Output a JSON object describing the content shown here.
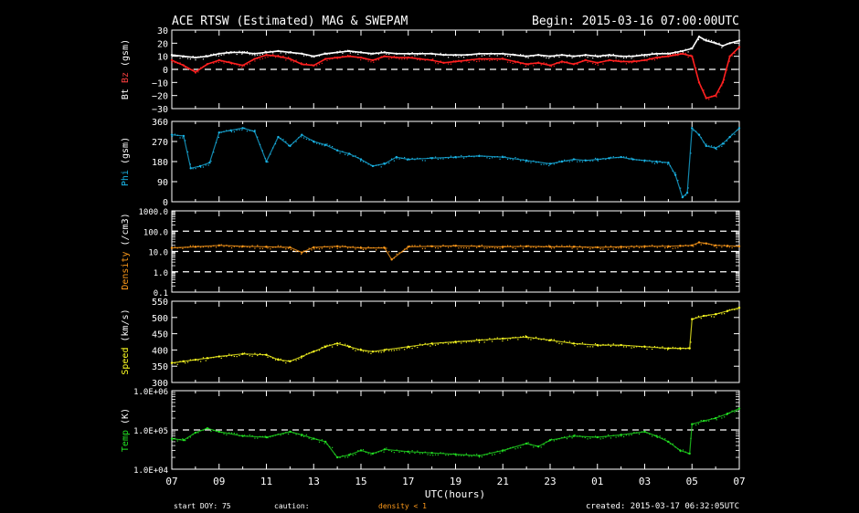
{
  "header": {
    "title": "ACE RTSW (Estimated) MAG & SWEPAM",
    "begin": "Begin: 2015-03-16 07:00:00UTC"
  },
  "footer": {
    "start_doy": "start DOY:  75",
    "caution": "caution:",
    "density_note": "density < 1",
    "created": "created: 2015-03-17 06:32:05UTC"
  },
  "x_axis": {
    "label": "UTC(hours)",
    "ticks": [
      "07",
      "09",
      "11",
      "13",
      "15",
      "17",
      "19",
      "21",
      "23",
      "01",
      "03",
      "05",
      "07"
    ]
  },
  "colors": {
    "bt": "#ffffff",
    "bz": "#ff2020",
    "phi": "#19b4e6",
    "density": "#ff9a1a",
    "speed": "#ffff22",
    "temp": "#22e022",
    "label_dim": "#ff4040"
  },
  "chart_data": [
    {
      "type": "line",
      "panel": "mag",
      "ylabel_parts": [
        "Bt",
        "Bz",
        "(gsm)"
      ],
      "yticks": [
        "30",
        "20",
        "10",
        "0",
        "−10",
        "−20",
        "−30"
      ],
      "ylim": [
        -30,
        30
      ],
      "reference_lines": [
        0
      ],
      "x_hours": [
        0,
        0.5,
        1,
        1.5,
        2,
        2.5,
        3,
        3.5,
        4,
        4.5,
        5,
        5.5,
        6,
        6.5,
        7,
        7.5,
        8,
        8.5,
        9,
        9.5,
        10,
        10.5,
        11,
        11.5,
        12,
        12.5,
        13,
        13.5,
        14,
        14.5,
        15,
        15.5,
        16,
        16.5,
        17,
        17.5,
        18,
        18.5,
        19,
        19.5,
        20,
        20.5,
        21,
        21.3,
        21.6,
        22,
        22.3,
        22.6,
        23,
        23.3,
        23.6,
        24
      ],
      "series": [
        {
          "name": "Bt",
          "values": [
            11,
            10,
            9,
            10,
            12,
            13,
            13,
            12,
            13,
            14,
            13,
            12,
            10,
            12,
            13,
            14,
            13,
            12,
            13,
            12,
            12,
            12,
            12,
            11,
            11,
            11,
            12,
            12,
            12,
            11,
            10,
            11,
            10,
            11,
            10,
            11,
            10,
            11,
            10,
            10,
            11,
            12,
            12,
            13,
            14,
            16,
            25,
            22,
            20,
            18,
            20,
            22
          ]
        },
        {
          "name": "Bz",
          "values": [
            7,
            3,
            -2,
            4,
            7,
            5,
            3,
            8,
            11,
            10,
            8,
            4,
            3,
            8,
            9,
            10,
            9,
            7,
            10,
            9,
            9,
            8,
            7,
            5,
            6,
            7,
            8,
            8,
            8,
            6,
            4,
            5,
            3,
            6,
            4,
            7,
            5,
            7,
            6,
            6,
            7,
            9,
            10,
            11,
            12,
            10,
            -10,
            -22,
            -20,
            -10,
            10,
            17
          ]
        }
      ]
    },
    {
      "type": "scatter",
      "panel": "phi",
      "ylabel_parts": [
        "Phi",
        "(gsm)"
      ],
      "yticks": [
        "360",
        "270",
        "180",
        "90",
        "0"
      ],
      "ylim": [
        0,
        360
      ],
      "x_hours": [
        0,
        0.5,
        0.8,
        1.2,
        1.6,
        2,
        2.5,
        3,
        3.5,
        4,
        4.5,
        5,
        5.5,
        6,
        6.5,
        7,
        7.5,
        8,
        8.5,
        9,
        9.5,
        10,
        11,
        12,
        13,
        14,
        15,
        16,
        16.5,
        17,
        17.5,
        18,
        18.5,
        19,
        19.5,
        20,
        20.5,
        21,
        21.3,
        21.6,
        21.8,
        22,
        22.3,
        22.6,
        23,
        23.3,
        23.6,
        24
      ],
      "series": [
        {
          "name": "Phi",
          "values": [
            300,
            295,
            150,
            160,
            175,
            310,
            320,
            330,
            315,
            180,
            290,
            250,
            300,
            270,
            255,
            230,
            215,
            190,
            160,
            170,
            200,
            190,
            195,
            200,
            205,
            200,
            185,
            170,
            180,
            190,
            185,
            190,
            195,
            200,
            190,
            185,
            180,
            175,
            120,
            20,
            40,
            330,
            300,
            250,
            240,
            260,
            290,
            330
          ]
        }
      ]
    },
    {
      "type": "scatter",
      "panel": "density",
      "ylabel": "Density",
      "ylabel_unit": "(/cm3)",
      "yticks": [
        "1000.0",
        "100.0",
        "10.0",
        "1.0",
        "0.1"
      ],
      "ylim": [
        0.1,
        1000
      ],
      "yscale": "log",
      "reference_lines": [
        100,
        10,
        1
      ],
      "x_hours": [
        0,
        1,
        2,
        3,
        4,
        5,
        5.5,
        6,
        7,
        8,
        9,
        9.3,
        10,
        11,
        12,
        13,
        14,
        15,
        16,
        17,
        18,
        19,
        20,
        21,
        21.5,
        22,
        22.3,
        22.6,
        23,
        23.5,
        24
      ],
      "series": [
        {
          "name": "Density",
          "values": [
            15,
            17,
            20,
            18,
            17,
            16,
            9,
            16,
            18,
            15,
            15,
            4,
            17,
            18,
            19,
            18,
            17,
            18,
            17,
            17,
            16,
            17,
            18,
            18,
            19,
            20,
            28,
            25,
            20,
            19,
            18
          ]
        }
      ]
    },
    {
      "type": "scatter",
      "panel": "speed",
      "ylabel": "Speed",
      "ylabel_unit": "(km/s)",
      "yticks": [
        "550",
        "500",
        "450",
        "400",
        "350",
        "300"
      ],
      "ylim": [
        300,
        550
      ],
      "x_hours": [
        0,
        0.5,
        1,
        1.5,
        2,
        3,
        4,
        4.5,
        5,
        5.5,
        6,
        6.5,
        7,
        7.5,
        8,
        8.5,
        9,
        10,
        11,
        12,
        13,
        14,
        15,
        16,
        17,
        18,
        19,
        20,
        21,
        21.5,
        21.9,
        22,
        22.5,
        23,
        23.5,
        24
      ],
      "series": [
        {
          "name": "Speed",
          "values": [
            360,
            365,
            370,
            375,
            380,
            388,
            385,
            370,
            365,
            380,
            395,
            410,
            420,
            410,
            400,
            395,
            400,
            410,
            420,
            425,
            430,
            435,
            440,
            430,
            420,
            415,
            415,
            410,
            405,
            405,
            405,
            495,
            505,
            510,
            520,
            530
          ]
        }
      ]
    },
    {
      "type": "scatter",
      "panel": "temp",
      "ylabel": "Temp",
      "ylabel_unit": "(K)",
      "yticks": [
        "1.0E+06",
        "1.0E+05",
        "1.0E+04"
      ],
      "ylim": [
        10000,
        1000000
      ],
      "yscale": "log",
      "reference_lines": [
        100000
      ],
      "x_hours": [
        0,
        0.5,
        1,
        1.5,
        2,
        3,
        4,
        5,
        5.5,
        6,
        6.5,
        7,
        7.5,
        8,
        8.5,
        9,
        10,
        11,
        12,
        13,
        14,
        15,
        15.5,
        16,
        17,
        18,
        19,
        20,
        20.5,
        21,
        21.5,
        21.9,
        22,
        22.5,
        23,
        23.5,
        24
      ],
      "series": [
        {
          "name": "Temp",
          "values": [
            60000,
            55000,
            85000,
            110000,
            90000,
            70000,
            65000,
            90000,
            75000,
            60000,
            50000,
            20000,
            23000,
            30000,
            25000,
            32000,
            28000,
            26000,
            24000,
            22000,
            30000,
            45000,
            38000,
            55000,
            70000,
            65000,
            75000,
            90000,
            70000,
            50000,
            30000,
            25000,
            140000,
            170000,
            200000,
            260000,
            350000
          ]
        }
      ]
    }
  ]
}
